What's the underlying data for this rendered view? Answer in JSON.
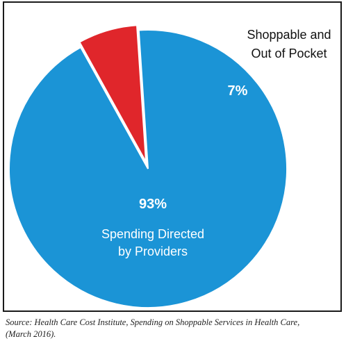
{
  "chart_data": {
    "type": "pie",
    "slices": [
      {
        "label": "Spending Directed by Providers",
        "label_lines": [
          "Spending Directed",
          "by Providers"
        ],
        "value": 93,
        "value_label": "93%",
        "color": "#1b94d6"
      },
      {
        "label": "Shoppable and Out of Pocket",
        "label_lines": [
          "Shoppable and",
          "Out of Pocket"
        ],
        "value": 7,
        "value_label": "7%",
        "color": "#e0262b",
        "exploded": true
      }
    ]
  },
  "source": {
    "line1": "Source: Health Care Cost Institute, Spending on Shoppable Services in Health Care,",
    "line2": "(March 2016)."
  }
}
